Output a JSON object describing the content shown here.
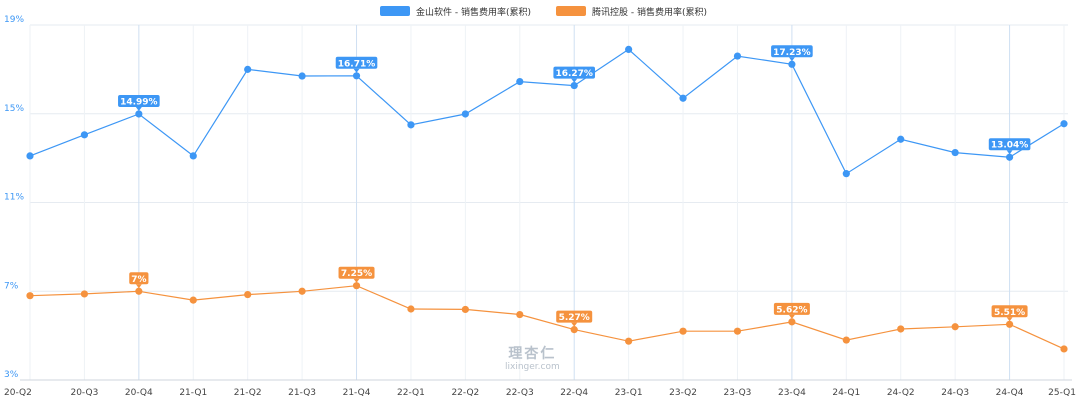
{
  "chart_data": {
    "type": "line",
    "categories": [
      "20-Q2",
      "20-Q3",
      "20-Q4",
      "21-Q1",
      "21-Q2",
      "21-Q3",
      "21-Q4",
      "22-Q1",
      "22-Q2",
      "22-Q3",
      "22-Q4",
      "23-Q1",
      "23-Q2",
      "23-Q3",
      "23-Q4",
      "24-Q1",
      "24-Q2",
      "24-Q3",
      "24-Q4",
      "25-Q1"
    ],
    "y_ticks": [
      "19%",
      "15%",
      "11%",
      "7%",
      "3%"
    ],
    "y_tick_values": [
      19,
      15,
      11,
      7,
      3
    ],
    "ylim": [
      3,
      19
    ],
    "grid": true,
    "legend_position": "top-center",
    "series": [
      {
        "name": "金山软件 - 销售费用率(累积)",
        "color": "#3d97f5",
        "values": [
          13.1,
          14.05,
          14.99,
          13.1,
          17.0,
          16.7,
          16.71,
          14.5,
          14.99,
          16.45,
          16.27,
          17.9,
          15.7,
          17.6,
          17.23,
          12.3,
          13.85,
          13.25,
          13.04,
          14.55
        ],
        "labels": [
          null,
          null,
          "14.99%",
          null,
          null,
          null,
          "16.71%",
          null,
          null,
          null,
          "16.27%",
          null,
          null,
          null,
          "17.23%",
          null,
          null,
          null,
          "13.04%",
          null
        ]
      },
      {
        "name": "腾讯控股 - 销售费用率(累积)",
        "color": "#f5923e",
        "values": [
          6.8,
          6.88,
          7.0,
          6.6,
          6.85,
          7.0,
          7.25,
          6.2,
          6.18,
          5.95,
          5.27,
          4.75,
          5.2,
          5.2,
          5.62,
          4.8,
          5.3,
          5.4,
          5.51,
          4.4
        ],
        "labels": [
          null,
          null,
          "7%",
          null,
          null,
          null,
          "7.25%",
          null,
          null,
          null,
          "5.27%",
          null,
          null,
          null,
          "5.62%",
          null,
          null,
          null,
          "5.51%",
          null
        ]
      }
    ]
  },
  "watermark": {
    "main": "理杏仁",
    "sub": "lixinger.com"
  }
}
